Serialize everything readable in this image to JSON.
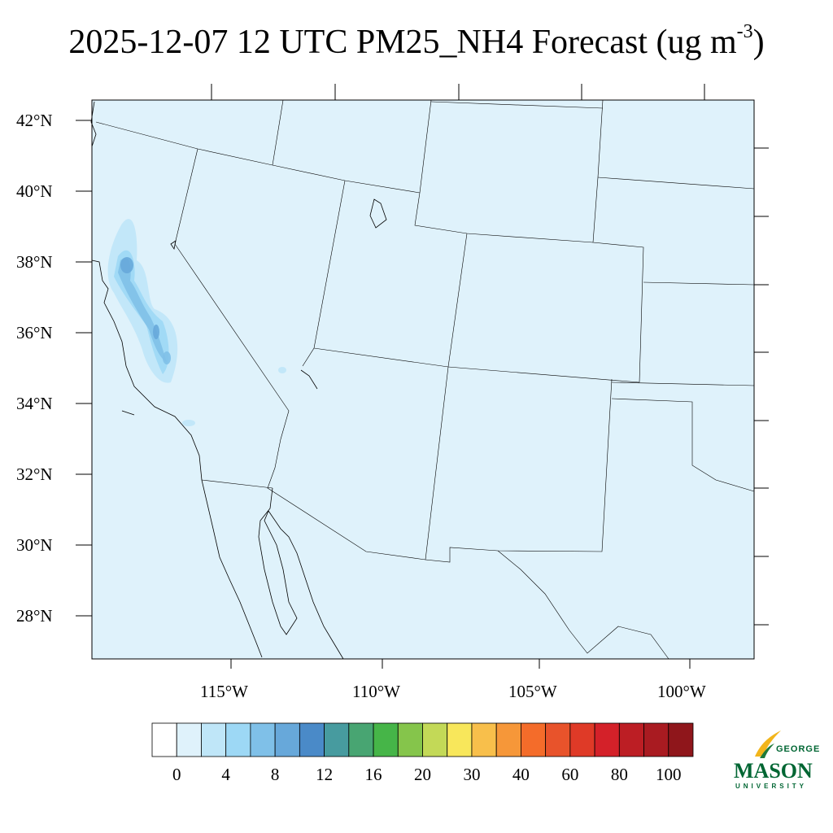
{
  "title": {
    "main": "2025-12-07 12 UTC PM25_NH4 Forecast (ug m",
    "superscript": "-3",
    "close": ")"
  },
  "map": {
    "variable": "PM25_NH4",
    "units": "ug m-3",
    "background_color": "#dff2fb",
    "lat_labels": [
      "42°N",
      "40°N",
      "38°N",
      "36°N",
      "34°N",
      "32°N",
      "30°N",
      "28°N"
    ],
    "lon_labels": [
      "115°W",
      "110°W",
      "105°W",
      "100°W"
    ]
  },
  "colorbar": {
    "labels": [
      "0",
      "4",
      "8",
      "12",
      "16",
      "20",
      "30",
      "40",
      "60",
      "80",
      "100"
    ],
    "colors": [
      "#ffffff",
      "#dff2fb",
      "#bfe6f8",
      "#9dd8f5",
      "#7fc0e8",
      "#67a8da",
      "#4a8ac8",
      "#479b9f",
      "#48a572",
      "#46b548",
      "#85c54b",
      "#c3d957",
      "#f8e75b",
      "#f8bf4b",
      "#f69739",
      "#f46c2a",
      "#e8532b",
      "#df3a27",
      "#d42129",
      "#bc1e24",
      "#a91b21",
      "#8f161b"
    ]
  },
  "logo": {
    "line1": "GEORGE",
    "line2": "MASON",
    "line3": "UNIVERSITY"
  }
}
